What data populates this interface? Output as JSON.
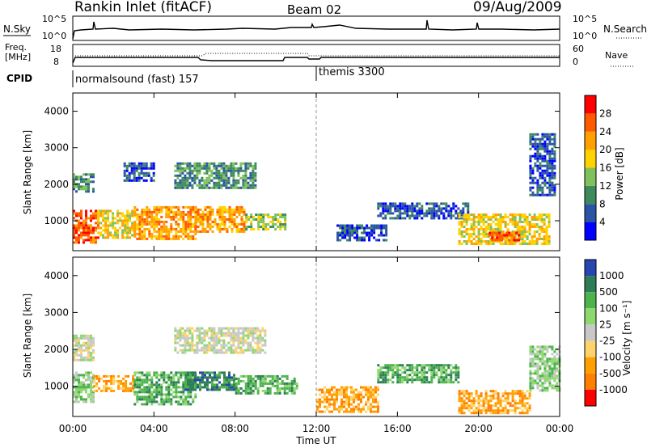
{
  "header": {
    "title": "Rankin Inlet (fitACF)",
    "beam": "Beam 02",
    "date": "09/Aug/2009"
  },
  "noise_panel": {
    "left_label": "N.Sky",
    "right_label": "N.Search",
    "left_ticks": [
      "10^5",
      "10^0"
    ],
    "right_ticks": [
      "10^5",
      "10^0"
    ]
  },
  "freq_panel": {
    "left_label_1": "Freq.",
    "left_label_2": "[MHz]",
    "right_label": "Nave",
    "left_ticks": [
      "18",
      "8"
    ],
    "right_ticks": [
      "60",
      "0"
    ]
  },
  "cpid": {
    "label": "CPID",
    "entries": [
      {
        "text": "normalsound (fast) 157",
        "start_hour": 0
      },
      {
        "text": "themis 3300",
        "start_hour": 12.0
      }
    ]
  },
  "x_axis": {
    "label": "Time UT",
    "ticks": [
      "00:00",
      "04:00",
      "08:00",
      "12:00",
      "16:00",
      "20:00",
      "00:00"
    ]
  },
  "chart_data": [
    {
      "type": "heatmap",
      "name": "power",
      "ylabel": "Slant Range [km]",
      "yticks": [
        "1000",
        "2000",
        "3000",
        "4000"
      ],
      "ylim": [
        180,
        4500
      ],
      "xlim": [
        0,
        24
      ],
      "colorbar_label": "Power [dB]",
      "colorbar_ticks": [
        "4",
        "8",
        "12",
        "16",
        "20",
        "24",
        "28"
      ],
      "colors": [
        "#0000ff",
        "#2b54a4",
        "#3d8a5c",
        "#7fc25c",
        "#ffd200",
        "#ff9f00",
        "#ff5a00",
        "#ff0000"
      ],
      "regions": [
        {
          "t": [
            0.0,
            1.2
          ],
          "r": [
            400,
            1300
          ],
          "level": 6
        },
        {
          "t": [
            1.2,
            3.0
          ],
          "r": [
            550,
            1300
          ],
          "level": 4
        },
        {
          "t": [
            3.0,
            6.0
          ],
          "r": [
            500,
            1400
          ],
          "level": 5
        },
        {
          "t": [
            6.0,
            8.5
          ],
          "r": [
            700,
            1400
          ],
          "level": 5
        },
        {
          "t": [
            8.5,
            10.5
          ],
          "r": [
            800,
            1200
          ],
          "level": 3
        },
        {
          "t": [
            0.0,
            1.0
          ],
          "r": [
            1800,
            2300
          ],
          "level": 2
        },
        {
          "t": [
            2.5,
            4.0
          ],
          "r": [
            2100,
            2600
          ],
          "level": 1
        },
        {
          "t": [
            5.0,
            9.0
          ],
          "r": [
            1900,
            2600
          ],
          "level": 2
        },
        {
          "t": [
            13.0,
            15.5
          ],
          "r": [
            500,
            900
          ],
          "level": 1
        },
        {
          "t": [
            15.0,
            19.5
          ],
          "r": [
            1100,
            1500
          ],
          "level": 1
        },
        {
          "t": [
            19.0,
            23.5
          ],
          "r": [
            400,
            1200
          ],
          "level": 4
        },
        {
          "t": [
            20.5,
            22.0
          ],
          "r": [
            450,
            700
          ],
          "level": 6
        },
        {
          "t": [
            22.5,
            23.8
          ],
          "r": [
            1700,
            3400
          ],
          "level": 1
        }
      ]
    },
    {
      "type": "heatmap",
      "name": "velocity",
      "ylabel": "Slant Range [km]",
      "yticks": [
        "1000",
        "2000",
        "3000",
        "4000"
      ],
      "ylim": [
        180,
        4500
      ],
      "xlim": [
        0,
        24
      ],
      "colorbar_label": "Velocity [m s⁻¹]",
      "colorbar_ticks": [
        "1000",
        "500",
        "100",
        "25",
        "-25",
        "-100",
        "-500",
        "-1000"
      ],
      "colors": [
        "#2646b0",
        "#2e7d57",
        "#4db44d",
        "#8ed870",
        "#c8c8c8",
        "#ffd36b",
        "#ff9f00",
        "#ff7f00",
        "#ff0000"
      ],
      "regions": [
        {
          "t": [
            0.0,
            1.0
          ],
          "r": [
            600,
            1400
          ],
          "level": 3
        },
        {
          "t": [
            1.0,
            3.0
          ],
          "r": [
            900,
            1300
          ],
          "level": 6
        },
        {
          "t": [
            3.0,
            6.0
          ],
          "r": [
            500,
            1400
          ],
          "level": 2
        },
        {
          "t": [
            5.5,
            8.0
          ],
          "r": [
            900,
            1400
          ],
          "level": 1
        },
        {
          "t": [
            8.0,
            11.0
          ],
          "r": [
            800,
            1300
          ],
          "level": 2
        },
        {
          "t": [
            0.0,
            1.0
          ],
          "r": [
            1700,
            2400
          ],
          "level": 4
        },
        {
          "t": [
            5.0,
            9.5
          ],
          "r": [
            1900,
            2600
          ],
          "level": 4
        },
        {
          "t": [
            12.0,
            15.0
          ],
          "r": [
            300,
            1000
          ],
          "level": 6
        },
        {
          "t": [
            15.0,
            19.0
          ],
          "r": [
            1100,
            1600
          ],
          "level": 2
        },
        {
          "t": [
            19.0,
            22.5
          ],
          "r": [
            300,
            900
          ],
          "level": 6
        },
        {
          "t": [
            22.5,
            24.0
          ],
          "r": [
            900,
            2100
          ],
          "level": 3
        }
      ]
    }
  ]
}
